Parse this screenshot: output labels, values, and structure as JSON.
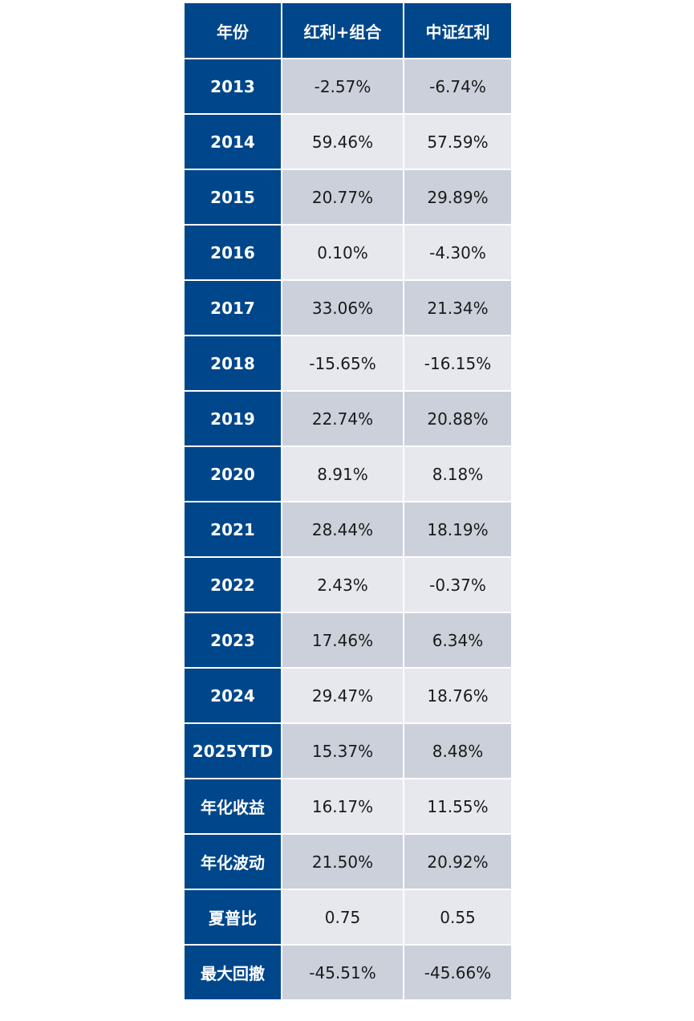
{
  "table": {
    "headers": [
      "年份",
      "红利+组合",
      "中证红利"
    ],
    "rows": [
      {
        "label": "2013",
        "portfolio": "-2.57%",
        "index": "-6.74%"
      },
      {
        "label": "2014",
        "portfolio": "59.46%",
        "index": "57.59%"
      },
      {
        "label": "2015",
        "portfolio": "20.77%",
        "index": "29.89%"
      },
      {
        "label": "2016",
        "portfolio": "0.10%",
        "index": "-4.30%"
      },
      {
        "label": "2017",
        "portfolio": "33.06%",
        "index": "21.34%"
      },
      {
        "label": "2018",
        "portfolio": "-15.65%",
        "index": "-16.15%"
      },
      {
        "label": "2019",
        "portfolio": "22.74%",
        "index": "20.88%"
      },
      {
        "label": "2020",
        "portfolio": "8.91%",
        "index": "8.18%"
      },
      {
        "label": "2021",
        "portfolio": "28.44%",
        "index": "18.19%"
      },
      {
        "label": "2022",
        "portfolio": "2.43%",
        "index": "-0.37%"
      },
      {
        "label": "2023",
        "portfolio": "17.46%",
        "index": "6.34%"
      },
      {
        "label": "2024",
        "portfolio": "29.47%",
        "index": "18.76%"
      },
      {
        "label": "2025YTD",
        "portfolio": "15.37%",
        "index": "8.48%"
      },
      {
        "label": "年化收益",
        "portfolio": "16.17%",
        "index": "11.55%"
      },
      {
        "label": "年化波动",
        "portfolio": "21.50%",
        "index": "20.92%"
      },
      {
        "label": "夏普比",
        "portfolio": "0.75",
        "index": "0.55"
      },
      {
        "label": "最大回撤",
        "portfolio": "-45.51%",
        "index": "-45.66%"
      }
    ]
  },
  "colors": {
    "header_bg": "#00468b",
    "row_dark": "#cbd0da",
    "row_light": "#e7e8ed"
  }
}
